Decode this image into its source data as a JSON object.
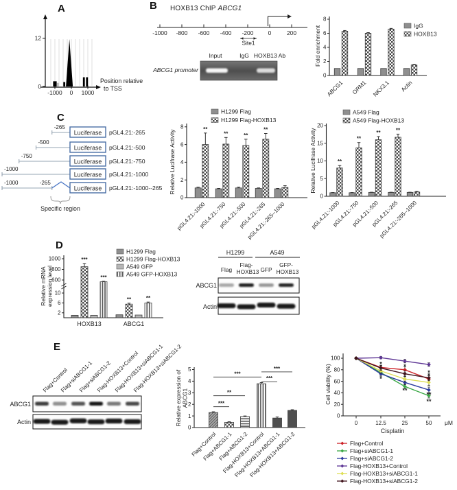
{
  "panel_labels": {
    "a": "A",
    "b": "B",
    "c": "C",
    "d": "D",
    "e": "E"
  },
  "panel_b": {
    "title": "HOXB13 ChIP",
    "title_gene": "ABCG1",
    "ruler": {
      "ticks": [
        -1000,
        -800,
        -600,
        -400,
        -200,
        0,
        200
      ],
      "site_label": "Site1"
    },
    "gel": {
      "row_label": "ABCG1 promoter",
      "lanes": [
        "Input",
        "IgG",
        "HOXB13 Ab"
      ],
      "band_intensity": [
        0.95,
        0,
        0.8
      ]
    }
  },
  "panel_c_diagram": {
    "box_label": "Luciferase",
    "constructs": [
      {
        "start": -265,
        "start_label": "-265",
        "name": "pGL4.21:-265"
      },
      {
        "start": -500,
        "start_label": "-500",
        "name": "pGL4.21:-500"
      },
      {
        "start": -750,
        "start_label": "-750",
        "name": "pGL4.21:-750"
      },
      {
        "start": -1000,
        "start_label": "-1000",
        "name": "pGL4.21:-1000"
      },
      {
        "start": -1000,
        "start_label": "-1000",
        "gap_end": -265,
        "gap_label": "-265",
        "name": "pGL4.21:-1000--265"
      }
    ],
    "brace_label": "Specific region"
  },
  "panel_d_blot": {
    "cell_groups": [
      "H1299",
      "A549"
    ],
    "lanes": [
      [
        "Flag"
      ],
      [
        "Flag-",
        "HOXB13"
      ],
      [
        "GFP"
      ],
      [
        "GFP-",
        "HOXB13"
      ]
    ],
    "rows": [
      "ABCG1",
      "Actin"
    ],
    "abcg1_band_intensity": [
      0.35,
      0.92,
      0.42,
      0.9
    ],
    "actin_band_intensity": [
      0.95,
      0.95,
      0.95,
      0.95
    ]
  },
  "panel_e_blot": {
    "lanes": [
      "Flag+Control",
      "Flag+siABCG1-1",
      "Flag+siABCG1-2",
      "Flag-HOXB13+Control",
      "Flag-HOXB13+siABCG1-1",
      "Flag-HOXB13+siABCG1-2"
    ],
    "rows": [
      "ABCG1",
      "Actin"
    ],
    "abcg1_band_intensity": [
      0.8,
      0.45,
      0.7,
      0.97,
      0.55,
      0.75
    ],
    "actin_band_intensity": [
      0.95,
      0.95,
      0.95,
      0.95,
      0.95,
      0.95
    ]
  },
  "chart_data": [
    {
      "id": "tss_histogram",
      "type": "bar",
      "xlabel_lines": [
        "Position relative",
        "to TSS"
      ],
      "yticks": [
        0,
        12
      ],
      "xticks": [
        -1000,
        0,
        1000
      ],
      "bars": [
        {
          "pos": -1050,
          "h": 1.3
        },
        {
          "pos": -950,
          "h": 1.3
        },
        {
          "pos": -820,
          "h": 0.9,
          "light": true
        },
        {
          "pos": -430,
          "h": 1.1
        },
        {
          "pos": -120,
          "h": 11.8,
          "peak": true
        },
        {
          "pos": 760,
          "h": 2.3
        },
        {
          "pos": 950,
          "h": 2.3
        }
      ]
    },
    {
      "id": "chip_fold_enrichment",
      "type": "bar",
      "ylabel": "Fold enrichment",
      "ylim": [
        0,
        8
      ],
      "yticks": [
        0,
        2,
        4,
        6,
        8
      ],
      "categories": [
        "ABCG1",
        "ORM1",
        "NKX3.1",
        "Actin"
      ],
      "series": [
        {
          "name": "IgG",
          "pattern": "solid",
          "values": [
            1,
            1,
            1,
            1
          ],
          "errors": [
            0,
            0,
            0,
            0
          ]
        },
        {
          "name": "HOXB13",
          "pattern": "checker",
          "values": [
            6.3,
            6.0,
            6.6,
            1.5
          ],
          "errors": [
            0.1,
            0.1,
            0.1,
            0.08
          ]
        }
      ]
    },
    {
      "id": "luciferase_h1299",
      "type": "bar",
      "ylabel": "Relative Lucifrase Activity",
      "ylim": [
        0,
        8
      ],
      "yticks": [
        0,
        2,
        4,
        6,
        8
      ],
      "categories": [
        "pGL4.21:-1000",
        "pGL4.21:-750",
        "pGL4.21:-500",
        "pGL4.21:-265",
        "pGL4.21:-265--1000"
      ],
      "series": [
        {
          "name": "H1299 Flag",
          "pattern": "solid",
          "values": [
            1.1,
            1.0,
            1.1,
            1.05,
            1.0
          ],
          "errors": [
            0.08,
            0.05,
            0.08,
            0.05,
            0.05
          ]
        },
        {
          "name": "H1299 Flag-HOXB13",
          "pattern": "checker",
          "values": [
            6.0,
            6.05,
            5.9,
            6.6,
            1.15
          ],
          "errors": [
            1.3,
            0.75,
            0.7,
            0.65,
            0.2
          ],
          "sig": [
            "**",
            "**",
            "**",
            "**",
            ""
          ]
        }
      ]
    },
    {
      "id": "luciferase_a549",
      "type": "bar",
      "ylabel": "Relative Lucifrase Activity",
      "ylim": [
        0,
        20
      ],
      "yticks": [
        0,
        5,
        10,
        15,
        20
      ],
      "categories": [
        "pGL4.21:-1000",
        "pGL4.21:-750",
        "pGL4.21:-500",
        "pGL4.21:-265",
        "pGL4.21:-265--1000"
      ],
      "series": [
        {
          "name": "A549 Flag",
          "pattern": "solid",
          "values": [
            1,
            1,
            1.1,
            1.1,
            1.1
          ],
          "errors": [
            0.05,
            0.05,
            0.05,
            0.05,
            0.05
          ]
        },
        {
          "name": "A549 Flag-HOXB13",
          "pattern": "checker",
          "values": [
            8,
            13.7,
            16,
            16.7,
            1.2
          ],
          "errors": [
            0.7,
            1.5,
            0.9,
            0.9,
            0.2
          ],
          "sig": [
            "**",
            "**",
            "**",
            "**",
            ""
          ]
        }
      ]
    },
    {
      "id": "mrna_expression",
      "type": "bar",
      "ylabel_lines": [
        "Relative mRNA",
        "expression level"
      ],
      "yticks_lower": [
        2,
        6,
        10
      ],
      "yticks_upper": [
        600,
        800,
        1000
      ],
      "axis_break": [
        10,
        600
      ],
      "categories": [
        "HOXB13",
        "ABCG1"
      ],
      "series": [
        {
          "name": "H1299 Flag",
          "pattern": "solid",
          "values": [
            1,
            1.2
          ],
          "errors": [
            0,
            0
          ]
        },
        {
          "name": "H1299 Flag-HOXB13",
          "pattern": "checker",
          "values": [
            850,
            5.5
          ],
          "errors": [
            60,
            0.4
          ],
          "sig": [
            "***",
            "**"
          ]
        },
        {
          "name": "A549 GFP",
          "pattern": "solid2",
          "values": [
            1,
            1.1
          ],
          "errors": [
            0,
            0
          ]
        },
        {
          "name": "A549 GFP-HOXB13",
          "pattern": "vstripe",
          "values": [
            520,
            6.0
          ],
          "errors": [
            25,
            0.35
          ],
          "sig": [
            "***",
            "**"
          ]
        }
      ]
    },
    {
      "id": "abcg1_relative_expression",
      "type": "bar",
      "ylabel_lines": [
        "Relative expression of",
        "ABCG1"
      ],
      "ylim": [
        0,
        5
      ],
      "yticks": [
        0,
        1,
        2,
        3,
        4,
        5
      ],
      "categories": [
        "Flag+Control",
        "Flag+ABCG1-1",
        "Flag+ABCG1-2",
        "Flag-HOXB13+Control",
        "Flag-HOXB13+ABCG1-1",
        "Flag-HOXB13+ABCG1-2"
      ],
      "values": [
        1.3,
        0.45,
        0.95,
        3.78,
        0.82,
        1.48
      ],
      "errors": [
        0.06,
        0.05,
        0.05,
        0.1,
        0.09,
        0.06
      ],
      "bar_patterns": [
        "diag",
        "checker",
        "hstripe",
        "vstripe",
        "dark",
        "dark"
      ],
      "brackets": [
        {
          "from": 0,
          "to": 1,
          "level": 1.8,
          "label": "***"
        },
        {
          "from": 0,
          "to": 2,
          "level": 2.75,
          "label": "**"
        },
        {
          "from": 0,
          "to": 3,
          "level": 4.35,
          "label": "***"
        },
        {
          "from": 3,
          "to": 4,
          "level": 3.95,
          "label": "***"
        },
        {
          "from": 3,
          "to": 5,
          "level": 4.8,
          "label": "***"
        }
      ]
    },
    {
      "id": "cell_viability",
      "type": "line",
      "ylabel": "Cell viability (%)",
      "xlabel": "Cisplatin",
      "x_unit": "μM",
      "x": [
        0,
        12.5,
        25,
        50
      ],
      "yticks": [
        0,
        20,
        40,
        60,
        80,
        100
      ],
      "series": [
        {
          "name": "Flag+Control",
          "color": "#cc2026",
          "values": [
            100,
            84,
            80,
            64
          ],
          "errors": [
            1.5,
            4,
            5,
            6
          ]
        },
        {
          "name": "Flag+siABCG1-1",
          "color": "#3aa845",
          "values": [
            100,
            75,
            51,
            35
          ],
          "errors": [
            1.5,
            4,
            4,
            4
          ]
        },
        {
          "name": "Flag+siABCG1-2",
          "color": "#2b3a9e",
          "values": [
            100,
            73,
            58,
            45
          ],
          "errors": [
            1.5,
            4,
            4,
            5
          ]
        },
        {
          "name": "Flag-HOXB13+Control",
          "color": "#5c3494",
          "values": [
            100,
            101,
            95,
            89
          ],
          "errors": [
            1.5,
            2,
            3,
            3
          ]
        },
        {
          "name": "Flag-HOXB13+siABCG1-1",
          "color": "#dede55",
          "values": [
            100,
            78,
            64,
            58
          ],
          "errors": [
            1.5,
            4,
            5,
            5
          ]
        },
        {
          "name": "Flag-HOXB13+siABCG1-2",
          "color": "#40141c",
          "values": [
            100,
            83,
            73,
            66
          ],
          "errors": [
            1.5,
            4,
            5,
            5
          ]
        }
      ],
      "annotations": [
        {
          "x": 12.5,
          "v": 90,
          "color": "#c9b820",
          "label": "*"
        },
        {
          "x": 12.5,
          "v": 64,
          "color": "#2b3a9e",
          "label": "*"
        },
        {
          "x": 25,
          "v": 86,
          "color": "#40141c",
          "label": "*"
        },
        {
          "x": 25,
          "v": 44,
          "color": "#3aa845",
          "label": "**"
        },
        {
          "x": 50,
          "v": 75,
          "color": "#cc2026",
          "label": "*"
        },
        {
          "x": 50,
          "v": 70,
          "color": "#c9b820",
          "label": "*"
        },
        {
          "x": 50,
          "v": 37,
          "color": "#2b3a9e",
          "label": "**"
        },
        {
          "x": 50,
          "v": 25,
          "color": "#5c3494",
          "label": "**"
        }
      ]
    }
  ]
}
